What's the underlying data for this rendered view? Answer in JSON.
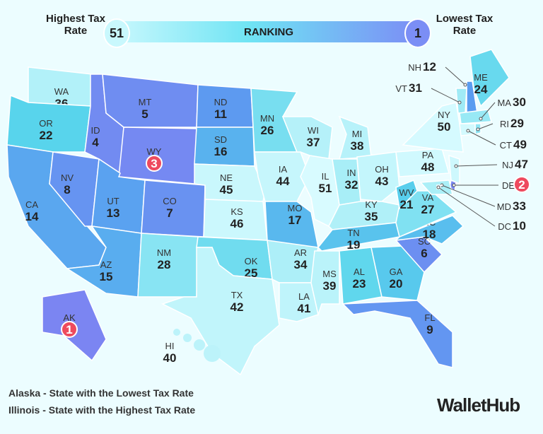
{
  "legend": {
    "high_label": "Highest Tax Rate",
    "high_value": "51",
    "title": "RANKING",
    "low_value": "1",
    "low_label": "Lowest Tax Rate",
    "colors": {
      "lowest_rank": "#7b85f2",
      "highest_rank": "#d8fbff",
      "badge": "#ee4a5e"
    }
  },
  "states": [
    {
      "abbr": "WA",
      "rank": 36
    },
    {
      "abbr": "OR",
      "rank": 22
    },
    {
      "abbr": "CA",
      "rank": 14
    },
    {
      "abbr": "NV",
      "rank": 8
    },
    {
      "abbr": "ID",
      "rank": 4
    },
    {
      "abbr": "MT",
      "rank": 5
    },
    {
      "abbr": "WY",
      "rank": 3,
      "badge": true
    },
    {
      "abbr": "UT",
      "rank": 13
    },
    {
      "abbr": "AZ",
      "rank": 15
    },
    {
      "abbr": "CO",
      "rank": 7
    },
    {
      "abbr": "NM",
      "rank": 28
    },
    {
      "abbr": "ND",
      "rank": 11
    },
    {
      "abbr": "SD",
      "rank": 16
    },
    {
      "abbr": "NE",
      "rank": 45
    },
    {
      "abbr": "KS",
      "rank": 46
    },
    {
      "abbr": "OK",
      "rank": 25
    },
    {
      "abbr": "TX",
      "rank": 42
    },
    {
      "abbr": "MN",
      "rank": 26
    },
    {
      "abbr": "IA",
      "rank": 44
    },
    {
      "abbr": "MO",
      "rank": 17
    },
    {
      "abbr": "AR",
      "rank": 34
    },
    {
      "abbr": "LA",
      "rank": 41
    },
    {
      "abbr": "WI",
      "rank": 37
    },
    {
      "abbr": "IL",
      "rank": 51
    },
    {
      "abbr": "MI",
      "rank": 38
    },
    {
      "abbr": "IN",
      "rank": 32
    },
    {
      "abbr": "OH",
      "rank": 43
    },
    {
      "abbr": "KY",
      "rank": 35
    },
    {
      "abbr": "TN",
      "rank": 19
    },
    {
      "abbr": "MS",
      "rank": 39
    },
    {
      "abbr": "AL",
      "rank": 23
    },
    {
      "abbr": "GA",
      "rank": 20
    },
    {
      "abbr": "FL",
      "rank": 9
    },
    {
      "abbr": "SC",
      "rank": 6
    },
    {
      "abbr": "NC",
      "rank": 18
    },
    {
      "abbr": "VA",
      "rank": 27
    },
    {
      "abbr": "WV",
      "rank": 21
    },
    {
      "abbr": "PA",
      "rank": 48
    },
    {
      "abbr": "NY",
      "rank": 50
    },
    {
      "abbr": "ME",
      "rank": 24
    },
    {
      "abbr": "NH",
      "rank": 12
    },
    {
      "abbr": "VT",
      "rank": 31
    },
    {
      "abbr": "MA",
      "rank": 30
    },
    {
      "abbr": "RI",
      "rank": 29
    },
    {
      "abbr": "CT",
      "rank": 49
    },
    {
      "abbr": "NJ",
      "rank": 47
    },
    {
      "abbr": "DE",
      "rank": 2,
      "badge": true
    },
    {
      "abbr": "MD",
      "rank": 33
    },
    {
      "abbr": "DC",
      "rank": 10
    },
    {
      "abbr": "AK",
      "rank": 1,
      "badge": true
    },
    {
      "abbr": "HI",
      "rank": 40
    }
  ],
  "footer": {
    "line1": "Alaska - State with the Lowest Tax Rate",
    "line2": "Illinois - State with the Highest Tax Rate",
    "brand": "WalletHub"
  }
}
